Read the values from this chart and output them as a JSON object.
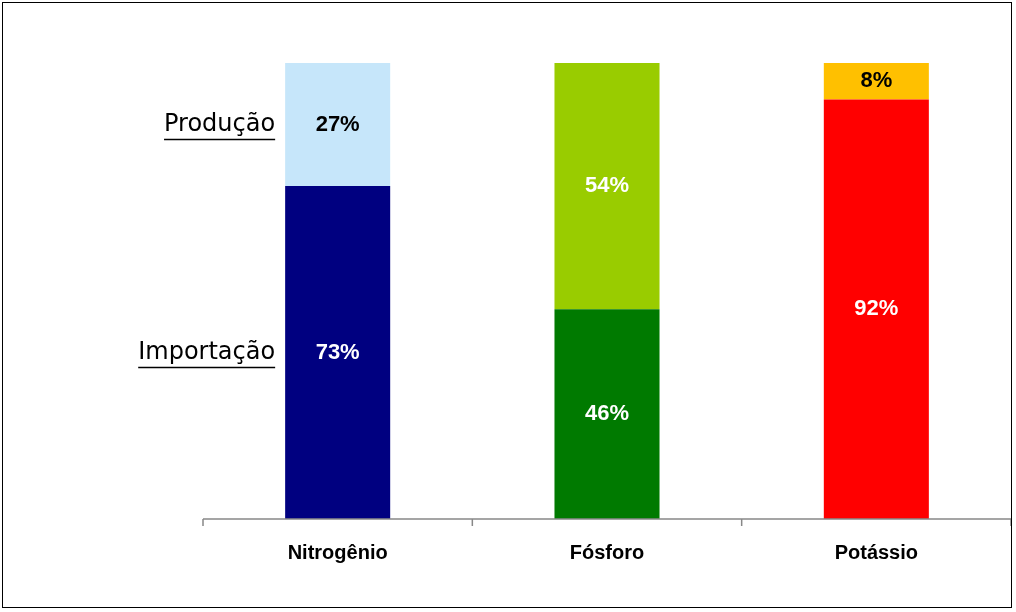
{
  "chart_data": {
    "type": "bar",
    "stacked": true,
    "categories": [
      "Nitrogênio",
      "Fósforo",
      "Potássio"
    ],
    "series": [
      {
        "name": "Importação",
        "colors": [
          "#000080",
          "#007a00",
          "#ff0000"
        ],
        "values": [
          73,
          46,
          92
        ],
        "value_labels": [
          "73%",
          "46%",
          "92%"
        ]
      },
      {
        "name": "Produção",
        "colors": [
          "#c6e6fa",
          "#99cc00",
          "#ffc000"
        ],
        "values": [
          27,
          54,
          8
        ],
        "value_labels": [
          "27%",
          "54%",
          "8%"
        ]
      }
    ],
    "grid": false,
    "legend": false
  }
}
